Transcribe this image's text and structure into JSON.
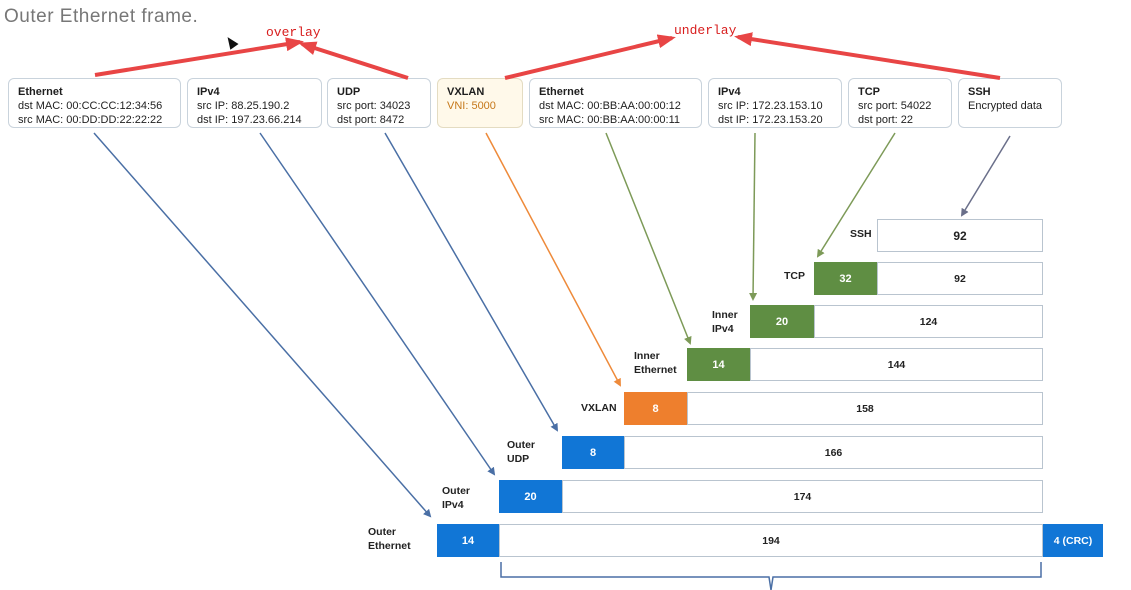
{
  "header": {
    "title": "Outer Ethernet frame."
  },
  "annotations": {
    "overlay": "overlay",
    "underlay": "underlay"
  },
  "boxes": [
    {
      "title": "Ethernet",
      "line1": "dst MAC: 00:CC:CC:12:34:56",
      "line2": "src MAC: 00:DD:DD:22:22:22"
    },
    {
      "title": "IPv4",
      "line1": "src IP: 88.25.190.2",
      "line2": "dst IP: 197.23.66.214"
    },
    {
      "title": "UDP",
      "line1": "src port: 34023",
      "line2": "dst port: 8472"
    },
    {
      "title": "VXLAN",
      "line1": "VNI: 5000"
    },
    {
      "title": "Ethernet",
      "line1": "dst MAC: 00:BB:AA:00:00:12",
      "line2": "src MAC: 00:BB:AA:00:00:11"
    },
    {
      "title": "IPv4",
      "line1": "src IP: 172.23.153.10",
      "line2": "dst IP: 172.23.153.20"
    },
    {
      "title": "TCP",
      "line1": "src port: 54022",
      "line2": "dst port: 22"
    },
    {
      "title": "SSH",
      "line1": "Encrypted data"
    }
  ],
  "layers": [
    {
      "label1": "SSH",
      "header": "",
      "payload": "92"
    },
    {
      "label1": "TCP",
      "header": "32",
      "payload": "92"
    },
    {
      "label1": "Inner",
      "label2": "IPv4",
      "header": "20",
      "payload": "124"
    },
    {
      "label1": "Inner",
      "label2": "Ethernet",
      "header": "14",
      "payload": "144"
    },
    {
      "label1": "VXLAN",
      "header": "8",
      "payload": "158"
    },
    {
      "label1": "Outer",
      "label2": "UDP",
      "header": "8",
      "payload": "166"
    },
    {
      "label1": "Outer",
      "label2": "IPv4",
      "header": "20",
      "payload": "174"
    },
    {
      "label1": "Outer",
      "label2": "Ethernet",
      "header": "14",
      "payload": "194",
      "trailer": "4 (CRC)"
    }
  ],
  "colors": {
    "outer": "#1176d6",
    "inner": "#5f8e43",
    "vxlan": "#ee7f2d",
    "annotation": "#d81e1e",
    "outer_arrow": "#4a6fa5",
    "inner_arrow": "#7d9a58",
    "vxlan_arrow": "#ee8a3a",
    "ssh_arrow": "#6a6f8a"
  }
}
